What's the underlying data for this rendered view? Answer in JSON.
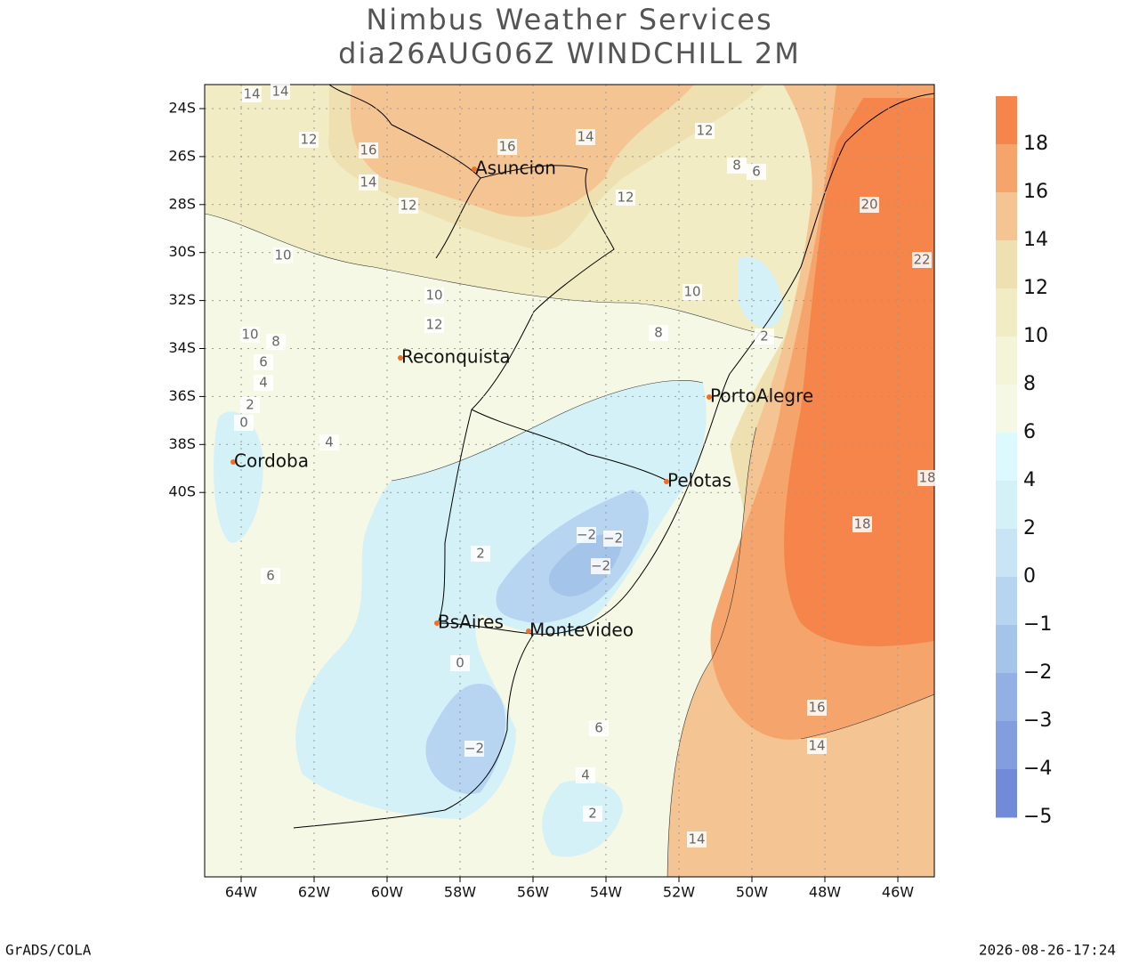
{
  "header": {
    "title": "Nimbus Weather Services",
    "subtitle": "dia26AUG06Z WINDCHILL 2M"
  },
  "map": {
    "lat_ticks": [
      "24S",
      "26S",
      "28S",
      "30S",
      "32S",
      "34S",
      "36S",
      "38S",
      "40S"
    ],
    "lon_ticks": [
      "64W",
      "62W",
      "60W",
      "58W",
      "56W",
      "54W",
      "52W",
      "50W",
      "48W",
      "46W"
    ],
    "cities": [
      "Asuncion",
      "Reconquista",
      "PortoAlegre",
      "Cordoba",
      "Pelotas",
      "BsAires",
      "Montevideo"
    ],
    "contour_labels": [
      "14",
      "14",
      "12",
      "16",
      "16",
      "14",
      "14",
      "12",
      "12",
      "10",
      "10",
      "12",
      "10",
      "8",
      "6",
      "4",
      "2",
      "0",
      "−2",
      "−2",
      "−2",
      "−2",
      "0",
      "2",
      "4",
      "6",
      "20",
      "22",
      "18",
      "18",
      "16",
      "14",
      "14",
      "12",
      "10",
      "8",
      "6",
      "4",
      "2",
      "8",
      "6",
      "2"
    ]
  },
  "colorbar": {
    "levels": [
      {
        "value": 18,
        "label": "18"
      },
      {
        "value": 16,
        "label": "16"
      },
      {
        "value": 14,
        "label": "14"
      },
      {
        "value": 12,
        "label": "12"
      },
      {
        "value": 10,
        "label": "10"
      },
      {
        "value": 8,
        "label": "8"
      },
      {
        "value": 6,
        "label": "6"
      },
      {
        "value": 4,
        "label": "4"
      },
      {
        "value": 2,
        "label": "2"
      },
      {
        "value": 0,
        "label": "0"
      },
      {
        "value": -1,
        "label": "−1"
      },
      {
        "value": -2,
        "label": "−2"
      },
      {
        "value": -3,
        "label": "−3"
      },
      {
        "value": -4,
        "label": "−4"
      },
      {
        "value": -5,
        "label": "−5"
      }
    ],
    "colors": [
      "#f5854a",
      "#f5a56b",
      "#f4c593",
      "#efe0b2",
      "#f1ecc3",
      "#f4f4d8",
      "#f5f8e4",
      "#dcf9fd",
      "#d5f1f8",
      "#c9e4f5",
      "#b7d5f0",
      "#a5c4ea",
      "#93b0e4",
      "#829ede",
      "#718bd8"
    ]
  },
  "footer": {
    "left": "GrADS/COLA",
    "right": "2026-08-26-17:24"
  }
}
